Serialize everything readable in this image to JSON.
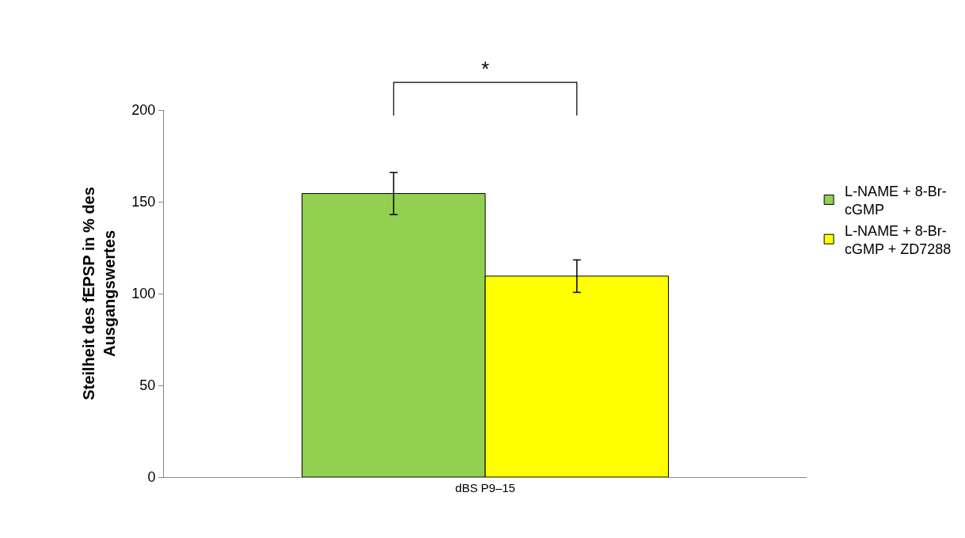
{
  "chart_data": {
    "type": "bar",
    "ylabel": "Steilheit des fEPSP in % des Ausgangswertes",
    "categories": [
      "dBS P9–15"
    ],
    "series": [
      {
        "name": "L-NAME + 8-Br-cGMP",
        "color": "#92d050",
        "values": [
          154.5
        ],
        "errors": [
          11.5
        ]
      },
      {
        "name": "L-NAME + 8-Br-cGMP + ZD7288",
        "color": "#ffff00",
        "values": [
          109.5
        ],
        "errors": [
          8.8
        ]
      }
    ],
    "ylim": [
      0,
      200
    ],
    "yticks": [
      0,
      50,
      100,
      150,
      200
    ],
    "legend": "right",
    "annotations": [
      "*"
    ]
  }
}
